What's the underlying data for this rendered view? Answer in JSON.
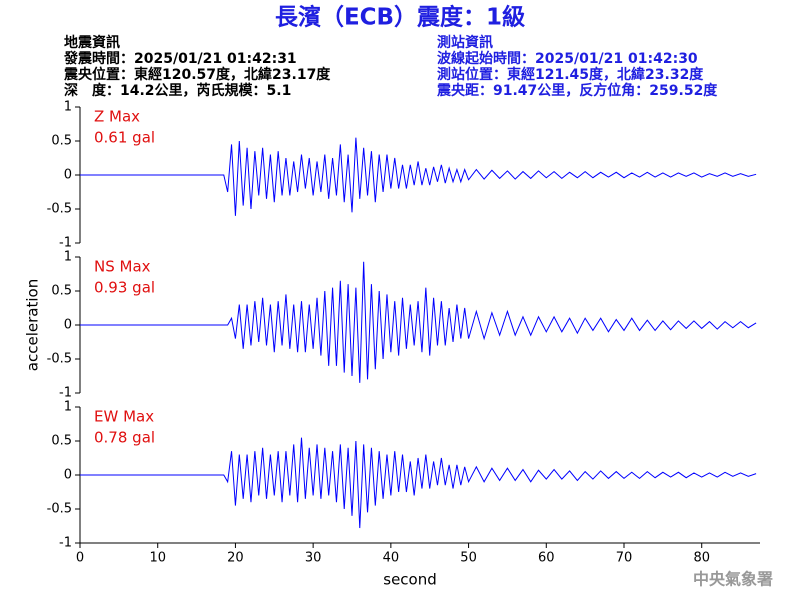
{
  "header": {
    "title": "長濱（ECB）震度：1級",
    "left": [
      "地震資訊",
      "發震時間：2025/01/21 01:42:31",
      "震央位置：東經120.57度，北緯23.17度",
      "深　度：14.2公里，芮氏規模：5.1"
    ],
    "right": [
      "測站資訊",
      "波線起始時間：2025/01/21 01:42:30",
      "測站位置：東經121.45度，北緯23.32度",
      "震央距：91.47公里，反方位角：259.52度"
    ],
    "footer": "中央氣象署"
  },
  "chart_data": [
    {
      "type": "line",
      "annotations": [
        "Z Max",
        "0.61 gal"
      ],
      "xlim": [
        0,
        87.5
      ],
      "ylim": [
        -1,
        1
      ],
      "yticks": [
        -1,
        -0.5,
        0,
        0.5,
        1
      ],
      "x": [
        0,
        18.5,
        19,
        19.5,
        20,
        20.5,
        21,
        21.5,
        22,
        22.5,
        23,
        23.5,
        24,
        24.5,
        25,
        25.5,
        26,
        26.5,
        27,
        27.5,
        28,
        28.5,
        29,
        29.5,
        30,
        30.5,
        31,
        31.5,
        32,
        32.5,
        33,
        33.5,
        34,
        34.5,
        35,
        35.5,
        36,
        36.5,
        37,
        37.5,
        38,
        38.5,
        39,
        39.5,
        40,
        40.5,
        41,
        41.5,
        42,
        42.5,
        43,
        43.5,
        44,
        44.5,
        45,
        45.5,
        46,
        46.5,
        47,
        47.5,
        48,
        48.5,
        49,
        49.5,
        50,
        51,
        52,
        53,
        54,
        55,
        56,
        57,
        58,
        59,
        60,
        61,
        62,
        63,
        64,
        65,
        66,
        67,
        68,
        69,
        70,
        71,
        72,
        73,
        74,
        75,
        76,
        77,
        78,
        79,
        80,
        81,
        82,
        83,
        84,
        85,
        86,
        87
      ],
      "series": [
        {
          "color": "#0000ff",
          "values": [
            0,
            0,
            -0.25,
            0.45,
            -0.6,
            0.5,
            -0.45,
            0.4,
            -0.5,
            0.35,
            -0.3,
            0.4,
            -0.35,
            0.3,
            -0.4,
            0.35,
            -0.3,
            0.25,
            -0.3,
            0.2,
            -0.25,
            0.3,
            -0.2,
            0.25,
            -0.3,
            0.2,
            -0.25,
            0.3,
            -0.35,
            0.25,
            -0.3,
            0.45,
            -0.4,
            0.3,
            -0.55,
            0.55,
            -0.35,
            0.4,
            -0.3,
            0.35,
            -0.4,
            0.3,
            -0.25,
            0.3,
            -0.2,
            0.25,
            -0.2,
            0.15,
            -0.2,
            0.15,
            -0.15,
            0.2,
            -0.15,
            0.1,
            -0.15,
            0.12,
            -0.1,
            0.15,
            -0.12,
            0.1,
            -0.1,
            0.08,
            -0.1,
            0.08,
            -0.07,
            0.08,
            -0.06,
            0.07,
            -0.05,
            0.06,
            -0.06,
            0.05,
            -0.05,
            0.06,
            -0.04,
            0.05,
            -0.05,
            0.04,
            -0.04,
            0.05,
            -0.04,
            0.04,
            -0.03,
            0.04,
            -0.04,
            0.03,
            -0.03,
            0.04,
            -0.03,
            0.03,
            -0.03,
            0.03,
            -0.02,
            0.03,
            -0.03,
            0.02,
            -0.02,
            0.03,
            -0.02,
            0.02,
            -0.02,
            0.01
          ]
        }
      ]
    },
    {
      "type": "line",
      "annotations": [
        "NS Max",
        "0.93 gal"
      ],
      "ylabel": "acceleration",
      "xlim": [
        0,
        87.5
      ],
      "ylim": [
        -1,
        1
      ],
      "yticks": [
        -1,
        -0.5,
        0,
        0.5,
        1
      ],
      "x": [
        0,
        18.5,
        19,
        19.5,
        20,
        20.5,
        21,
        21.5,
        22,
        22.5,
        23,
        23.5,
        24,
        24.5,
        25,
        25.5,
        26,
        26.5,
        27,
        27.5,
        28,
        28.5,
        29,
        29.5,
        30,
        30.5,
        31,
        31.5,
        32,
        32.5,
        33,
        33.5,
        34,
        34.5,
        35,
        35.5,
        36,
        36.5,
        37,
        37.5,
        38,
        38.5,
        39,
        39.5,
        40,
        40.5,
        41,
        41.5,
        42,
        42.5,
        43,
        43.5,
        44,
        44.5,
        45,
        45.5,
        46,
        46.5,
        47,
        47.5,
        48,
        48.5,
        49,
        49.5,
        50,
        51,
        52,
        53,
        54,
        55,
        56,
        57,
        58,
        59,
        60,
        61,
        62,
        63,
        64,
        65,
        66,
        67,
        68,
        69,
        70,
        71,
        72,
        73,
        74,
        75,
        76,
        77,
        78,
        79,
        80,
        81,
        82,
        83,
        84,
        85,
        86,
        87
      ],
      "series": [
        {
          "color": "#0000ff",
          "values": [
            0,
            0,
            0,
            0.1,
            -0.2,
            0.3,
            -0.35,
            0.3,
            -0.3,
            0.35,
            -0.25,
            0.4,
            -0.3,
            0.3,
            -0.4,
            0.35,
            -0.3,
            0.45,
            -0.35,
            0.3,
            -0.4,
            0.35,
            -0.4,
            0.3,
            -0.35,
            0.4,
            -0.45,
            0.5,
            -0.6,
            0.55,
            -0.6,
            0.65,
            -0.7,
            0.6,
            -0.75,
            0.55,
            -0.85,
            0.93,
            -0.8,
            0.6,
            -0.65,
            0.5,
            -0.5,
            0.45,
            -0.4,
            0.35,
            -0.45,
            0.4,
            -0.35,
            0.3,
            -0.3,
            0.35,
            -0.4,
            0.55,
            -0.45,
            0.4,
            -0.3,
            0.35,
            -0.3,
            0.25,
            -0.25,
            0.3,
            -0.2,
            0.25,
            -0.2,
            0.2,
            -0.2,
            0.18,
            -0.15,
            0.2,
            -0.15,
            0.12,
            -0.15,
            0.12,
            -0.1,
            0.12,
            -0.1,
            0.1,
            -0.12,
            0.1,
            -0.08,
            0.1,
            -0.1,
            0.08,
            -0.08,
            0.1,
            -0.08,
            0.07,
            -0.08,
            0.06,
            -0.07,
            0.06,
            -0.05,
            0.06,
            -0.05,
            0.05,
            -0.06,
            0.05,
            -0.04,
            0.05,
            -0.04,
            0.03
          ]
        }
      ]
    },
    {
      "type": "line",
      "annotations": [
        "EW Max",
        "0.78 gal"
      ],
      "xlabel": "second",
      "xlim": [
        0,
        87.5
      ],
      "xticks": [
        0,
        10,
        20,
        30,
        40,
        50,
        60,
        70,
        80
      ],
      "ylim": [
        -1,
        1
      ],
      "yticks": [
        -1,
        -0.5,
        0,
        0.5,
        1
      ],
      "x": [
        0,
        18.5,
        19,
        19.5,
        20,
        20.5,
        21,
        21.5,
        22,
        22.5,
        23,
        23.5,
        24,
        24.5,
        25,
        25.5,
        26,
        26.5,
        27,
        27.5,
        28,
        28.5,
        29,
        29.5,
        30,
        30.5,
        31,
        31.5,
        32,
        32.5,
        33,
        33.5,
        34,
        34.5,
        35,
        35.5,
        36,
        36.5,
        37,
        37.5,
        38,
        38.5,
        39,
        39.5,
        40,
        40.5,
        41,
        41.5,
        42,
        42.5,
        43,
        43.5,
        44,
        44.5,
        45,
        45.5,
        46,
        46.5,
        47,
        47.5,
        48,
        48.5,
        49,
        49.5,
        50,
        51,
        52,
        53,
        54,
        55,
        56,
        57,
        58,
        59,
        60,
        61,
        62,
        63,
        64,
        65,
        66,
        67,
        68,
        69,
        70,
        71,
        72,
        73,
        74,
        75,
        76,
        77,
        78,
        79,
        80,
        81,
        82,
        83,
        84,
        85,
        86,
        87
      ],
      "series": [
        {
          "color": "#0000ff",
          "values": [
            0,
            0,
            -0.1,
            0.35,
            -0.45,
            0.3,
            -0.35,
            0.3,
            -0.4,
            0.35,
            -0.3,
            0.4,
            -0.35,
            0.3,
            -0.3,
            0.35,
            -0.4,
            0.35,
            -0.3,
            0.45,
            -0.4,
            0.55,
            -0.35,
            0.4,
            -0.3,
            0.45,
            -0.35,
            0.4,
            -0.3,
            0.35,
            -0.4,
            0.45,
            -0.5,
            0.4,
            -0.6,
            0.5,
            -0.78,
            0.45,
            -0.55,
            0.4,
            -0.45,
            0.35,
            -0.35,
            0.3,
            -0.3,
            0.35,
            -0.25,
            0.3,
            -0.25,
            0.2,
            -0.3,
            0.25,
            -0.2,
            0.3,
            -0.2,
            0.2,
            -0.15,
            0.25,
            -0.15,
            0.15,
            -0.2,
            0.15,
            -0.15,
            0.12,
            -0.1,
            0.12,
            -0.1,
            0.1,
            -0.08,
            0.1,
            -0.08,
            0.08,
            -0.1,
            0.07,
            -0.06,
            0.08,
            -0.06,
            0.06,
            -0.08,
            0.05,
            -0.06,
            0.06,
            -0.05,
            0.05,
            -0.05,
            0.04,
            -0.05,
            0.05,
            -0.04,
            0.04,
            -0.03,
            0.04,
            -0.04,
            0.03,
            -0.03,
            0.03,
            -0.03,
            0.04,
            -0.02,
            0.03,
            -0.02,
            0.02
          ]
        }
      ]
    }
  ]
}
